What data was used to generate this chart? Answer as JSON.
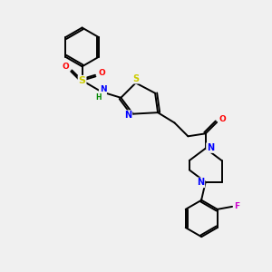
{
  "background_color": "#f0f0f0",
  "bond_color": "#000000",
  "atom_colors": {
    "S": "#cccc00",
    "N": "#0000ff",
    "O": "#ff0000",
    "F": "#cc00cc",
    "H": "#008800",
    "C": "#000000"
  },
  "figsize": [
    3.0,
    3.0
  ],
  "dpi": 100,
  "lw": 1.4
}
